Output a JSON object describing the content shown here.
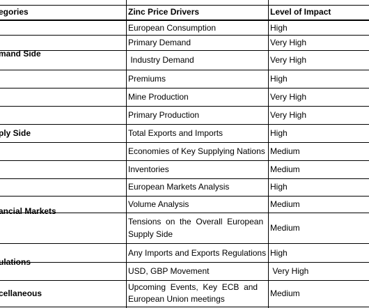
{
  "header": {
    "categories": "egories",
    "drivers": "Zinc Price Drivers",
    "impact": "Level of Impact"
  },
  "categories": {
    "demand": "mand Side",
    "supply": "ply Side",
    "financial": "ancial Markets",
    "regulations": "ulations",
    "misc": "cellaneous"
  },
  "rows": [
    {
      "driver": "European Consumption",
      "impact": "High"
    },
    {
      "driver": "Primary Demand",
      "impact": "Very High"
    },
    {
      "driver": " Industry Demand",
      "impact": "Very High"
    },
    {
      "driver": "Premiums",
      "impact": "High"
    },
    {
      "driver": "Mine Production",
      "impact": "Very High"
    },
    {
      "driver": "Primary Production",
      "impact": "Very High"
    },
    {
      "driver": "Total Exports and Imports",
      "impact": "High"
    },
    {
      "driver": "Economies of Key Supplying Nations",
      "impact": "Medium"
    },
    {
      "driver": "Inventories",
      "impact": "Medium"
    },
    {
      "driver": "European Markets Analysis",
      "impact": "High"
    },
    {
      "driver": "Volume Analysis",
      "impact": "Medium"
    },
    {
      "driver_line1": "Tensions  on  the  Overall  European",
      "driver_line2": "Supply Side",
      "impact": "Medium"
    },
    {
      "driver": "Any Imports and Exports Regulations",
      "impact": "High"
    },
    {
      "driver": "USD, GBP Movement",
      "impact": " Very High"
    },
    {
      "driver_line1": "Upcoming  Events,  Key  ECB  and",
      "driver_line2": "European Union meetings",
      "impact": "Medium"
    }
  ]
}
